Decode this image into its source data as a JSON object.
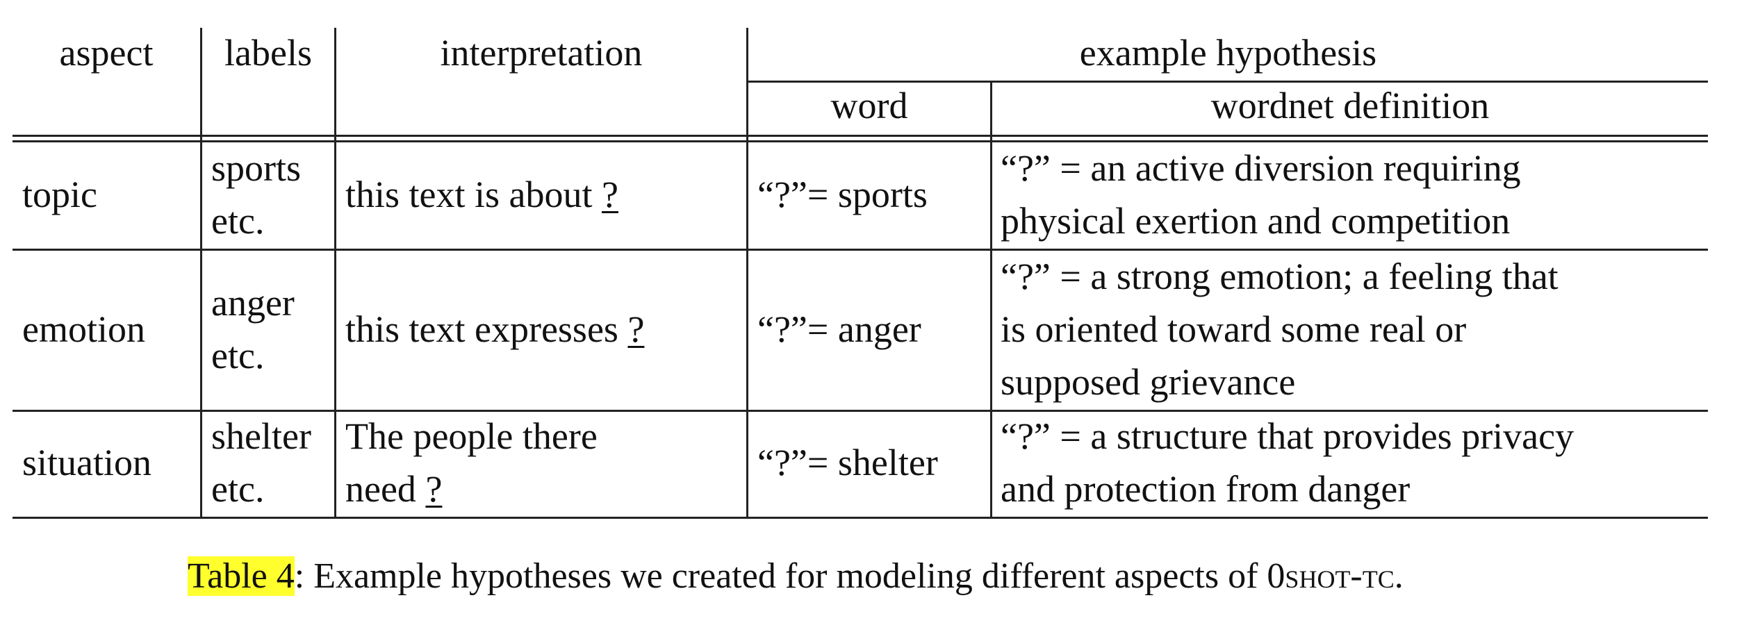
{
  "table": {
    "headers": {
      "aspect": "aspect",
      "labels": "labels",
      "interpretation": "interpretation",
      "example_hypothesis": "example hypothesis",
      "word": "word",
      "wordnet_definition": "wordnet definition"
    },
    "rows": [
      {
        "aspect": "topic",
        "labels": [
          "sports",
          "etc."
        ],
        "interpretation_lines": [
          [
            "this text is about ",
            "?"
          ]
        ],
        "word": "“?”= sports",
        "definition": [
          "“?” = an active diversion requiring",
          "physical exertion and competition"
        ]
      },
      {
        "aspect": "emotion",
        "labels": [
          "anger",
          "etc."
        ],
        "interpretation_lines": [
          [
            "this text expresses ",
            "?"
          ]
        ],
        "word": "“?”= anger",
        "definition": [
          "“?” = a strong emotion; a feeling that",
          "is oriented toward some real or",
          "supposed grievance"
        ]
      },
      {
        "aspect": "situation",
        "labels": [
          "shelter",
          "etc."
        ],
        "interpretation_lines": [
          [
            "The people there",
            ""
          ],
          [
            "need ",
            "?"
          ]
        ],
        "word": "“?”= shelter",
        "definition": [
          "“?” = a structure that provides privacy",
          "and protection from danger"
        ]
      }
    ]
  },
  "caption": {
    "label": "Table 4",
    "text": ": Example hypotheses we created for modeling different aspects of ",
    "name_prefix": "0",
    "name_sc": "shot-tc",
    "end": "."
  }
}
